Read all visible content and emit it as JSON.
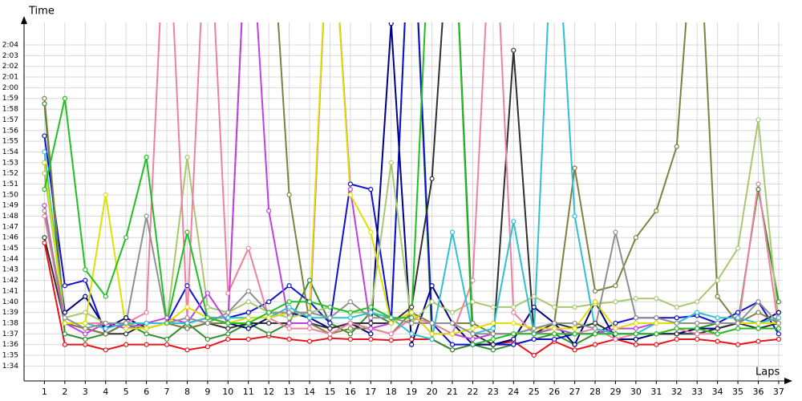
{
  "chart_data": {
    "type": "line",
    "y_label": "Time",
    "x_label": "Laps",
    "x": [
      1,
      2,
      3,
      4,
      5,
      6,
      7,
      8,
      9,
      10,
      11,
      12,
      13,
      14,
      15,
      16,
      17,
      18,
      19,
      20,
      21,
      22,
      23,
      24,
      25,
      26,
      27,
      28,
      29,
      30,
      31,
      32,
      33,
      34,
      35,
      36,
      37
    ],
    "xlim": [
      0,
      37.2
    ],
    "xticks": [
      1,
      2,
      3,
      4,
      5,
      6,
      7,
      8,
      9,
      10,
      11,
      12,
      13,
      14,
      15,
      16,
      17,
      18,
      19,
      20,
      21,
      22,
      23,
      24,
      25,
      26,
      27,
      28,
      29,
      30,
      31,
      32,
      33,
      34,
      35,
      36,
      37
    ],
    "ylim": [
      92.6,
      126.1
    ],
    "yticks": [
      {
        "value": 94,
        "label": "1:34"
      },
      {
        "value": 95,
        "label": "1:35"
      },
      {
        "value": 96,
        "label": "1:36"
      },
      {
        "value": 97,
        "label": "1:37"
      },
      {
        "value": 98,
        "label": "1:38"
      },
      {
        "value": 99,
        "label": "1:39"
      },
      {
        "value": 100,
        "label": "1:40"
      },
      {
        "value": 101,
        "label": "1:41"
      },
      {
        "value": 102,
        "label": "1:42"
      },
      {
        "value": 103,
        "label": "1:43"
      },
      {
        "value": 104,
        "label": "1:44"
      },
      {
        "value": 105,
        "label": "1:45"
      },
      {
        "value": 106,
        "label": "1:46"
      },
      {
        "value": 107,
        "label": "1:47"
      },
      {
        "value": 108,
        "label": "1:48"
      },
      {
        "value": 109,
        "label": "1:49"
      },
      {
        "value": 110,
        "label": "1:50"
      },
      {
        "value": 111,
        "label": "1:51"
      },
      {
        "value": 112,
        "label": "1:52"
      },
      {
        "value": 113,
        "label": "1:53"
      },
      {
        "value": 114,
        "label": "1:54"
      },
      {
        "value": 115,
        "label": "1:55"
      },
      {
        "value": 116,
        "label": "1:56"
      },
      {
        "value": 117,
        "label": "1:57"
      },
      {
        "value": 118,
        "label": "1:58"
      },
      {
        "value": 119,
        "label": "1:59"
      },
      {
        "value": 120,
        "label": "2:00"
      },
      {
        "value": 121,
        "label": "2:01"
      },
      {
        "value": 122,
        "label": "2:02"
      },
      {
        "value": 123,
        "label": "2:03"
      },
      {
        "value": 124,
        "label": "2:04"
      }
    ],
    "grid": true,
    "series": [
      {
        "color": "#e8141a",
        "values": [
          105.5,
          96,
          96,
          95.5,
          96,
          96,
          96,
          95.5,
          95.8,
          96.5,
          96.5,
          96.8,
          96.5,
          96.3,
          96.6,
          96.5,
          96.5,
          96.4,
          96.5,
          96.5,
          95.5,
          96,
          96,
          96.3,
          95,
          96.3,
          95.5,
          96,
          96.5,
          96,
          96,
          96.5,
          96.5,
          96.3,
          96,
          96.3,
          96.5
        ]
      },
      {
        "color": "#2f8f2f",
        "values": [
          118.5,
          97,
          96.5,
          97,
          98,
          97,
          96.5,
          98,
          96.5,
          97,
          98,
          97,
          98,
          102,
          98,
          97,
          99,
          98,
          140,
          96.5,
          95.5,
          96,
          95.5,
          96,
          96.5,
          97,
          96,
          97,
          97,
          97,
          97,
          97,
          97.5,
          98,
          98,
          110.5,
          100
        ]
      },
      {
        "color": "#1010d0",
        "values": [
          115.5,
          101.5,
          102,
          97,
          98,
          97.5,
          98,
          101.5,
          98.5,
          98.5,
          99,
          100,
          101.5,
          100,
          98,
          111,
          110.5,
          98,
          140,
          98,
          96,
          96,
          96,
          96,
          96.5,
          96.5,
          97,
          97,
          98,
          98.5,
          98.5,
          98.5,
          98.7,
          98,
          99,
          100,
          97
        ]
      },
      {
        "color": "#000080",
        "values": [
          113,
          99,
          100.5,
          97.5,
          98.5,
          97.5,
          98,
          98,
          98.5,
          98,
          97.5,
          98.5,
          99,
          98.5,
          97.5,
          98,
          97,
          126,
          96,
          101.5,
          98,
          96,
          96,
          96.5,
          99.5,
          98,
          96,
          100,
          96.5,
          96.5,
          97,
          97,
          97.5,
          97.5,
          98,
          98,
          99
        ]
      },
      {
        "color": "#303030",
        "values": [
          106,
          98,
          97.5,
          97,
          97,
          98,
          98,
          97.5,
          98,
          97.5,
          98,
          98,
          98,
          98,
          97.5,
          98,
          98,
          98,
          99.5,
          111.5,
          140,
          97,
          96,
          123.5,
          97,
          98,
          97.5,
          98,
          97,
          97,
          97,
          97,
          97,
          97.5,
          98,
          97.5,
          98
        ]
      },
      {
        "color": "#808040",
        "values": [
          119,
          98,
          97.5,
          97,
          98,
          97.5,
          98,
          97.5,
          98,
          98,
          140,
          140,
          110,
          98,
          97,
          97.5,
          97.5,
          97,
          99,
          98,
          98,
          98,
          97,
          97,
          97.5,
          98,
          112.5,
          101,
          101.5,
          106,
          108.5,
          114.5,
          140,
          100.5,
          98,
          99,
          98
        ]
      },
      {
        "color": "#a8c870",
        "values": [
          112,
          98.5,
          99,
          98,
          98,
          97.5,
          98,
          113.5,
          99.5,
          99,
          100,
          99,
          98.5,
          99,
          99.5,
          99,
          99,
          113,
          98,
          100,
          99,
          100,
          99.5,
          99.5,
          100.5,
          99.5,
          99.5,
          99.8,
          100,
          100.3,
          100.3,
          99.5,
          100,
          102,
          105,
          117,
          98
        ]
      },
      {
        "color": "#f080a0",
        "values": [
          108,
          98,
          98,
          98,
          98,
          99,
          140,
          98.5,
          140,
          100.8,
          105,
          98.5,
          97.5,
          97.5,
          97,
          98,
          97.5,
          97,
          98.5,
          98,
          97,
          102,
          140,
          99,
          97,
          97,
          97,
          97.5,
          96.5,
          97,
          97,
          97.5,
          97,
          97,
          97.5,
          111,
          97.5
        ]
      },
      {
        "color": "#c040e0",
        "values": [
          109,
          98,
          97,
          98,
          97.5,
          98,
          98.5,
          98,
          100.8,
          98,
          140,
          108.5,
          98,
          98,
          140,
          110.5,
          97.5,
          98,
          99,
          97,
          97,
          96.5,
          97,
          97,
          97,
          97.5,
          97,
          97,
          97.5,
          97.5,
          98,
          98,
          98,
          98,
          98,
          98,
          98
        ]
      },
      {
        "color": "#30c0d0",
        "values": [
          114,
          98,
          98,
          97.5,
          98,
          98,
          98,
          98,
          98.5,
          98.5,
          98.5,
          98.5,
          99.5,
          98.5,
          98.5,
          98.5,
          99,
          98.5,
          97,
          96.5,
          106.5,
          97,
          97.5,
          107.5,
          97,
          140,
          108,
          97.5,
          97,
          97,
          98,
          98,
          99,
          98.5,
          98.5,
          98,
          98.5
        ]
      },
      {
        "color": "#e0e000",
        "values": [
          113,
          98,
          98,
          110,
          97.5,
          97.5,
          98,
          99.5,
          98.5,
          98,
          98.5,
          98.5,
          99,
          99,
          140,
          110,
          106.5,
          98,
          99,
          97,
          97,
          97.5,
          98,
          98,
          97.5,
          97.5,
          97.5,
          100,
          97.5,
          98,
          98,
          98,
          98,
          98,
          98,
          98,
          98
        ]
      },
      {
        "color": "#909090",
        "values": [
          108.5,
          98.5,
          97.5,
          98,
          98,
          108,
          98,
          98.5,
          98,
          99,
          101,
          99,
          99,
          99,
          98.5,
          100,
          98.5,
          98.5,
          98,
          98,
          98,
          97,
          97,
          97,
          97.5,
          98,
          98,
          97.5,
          106.5,
          98.5,
          98.5,
          98,
          98,
          98,
          98,
          100,
          98
        ]
      },
      {
        "color": "#20c020",
        "values": [
          110.5,
          119,
          103,
          100.5,
          106,
          113.5,
          98,
          106.5,
          98.5,
          98,
          98,
          99,
          100,
          100,
          99.5,
          99,
          99.5,
          98.5,
          98.5,
          140,
          140,
          96,
          96.5,
          97,
          97,
          97,
          97,
          97,
          97,
          97,
          97,
          97.5,
          97.5,
          97,
          97.5,
          97.5,
          97.5
        ]
      }
    ]
  }
}
